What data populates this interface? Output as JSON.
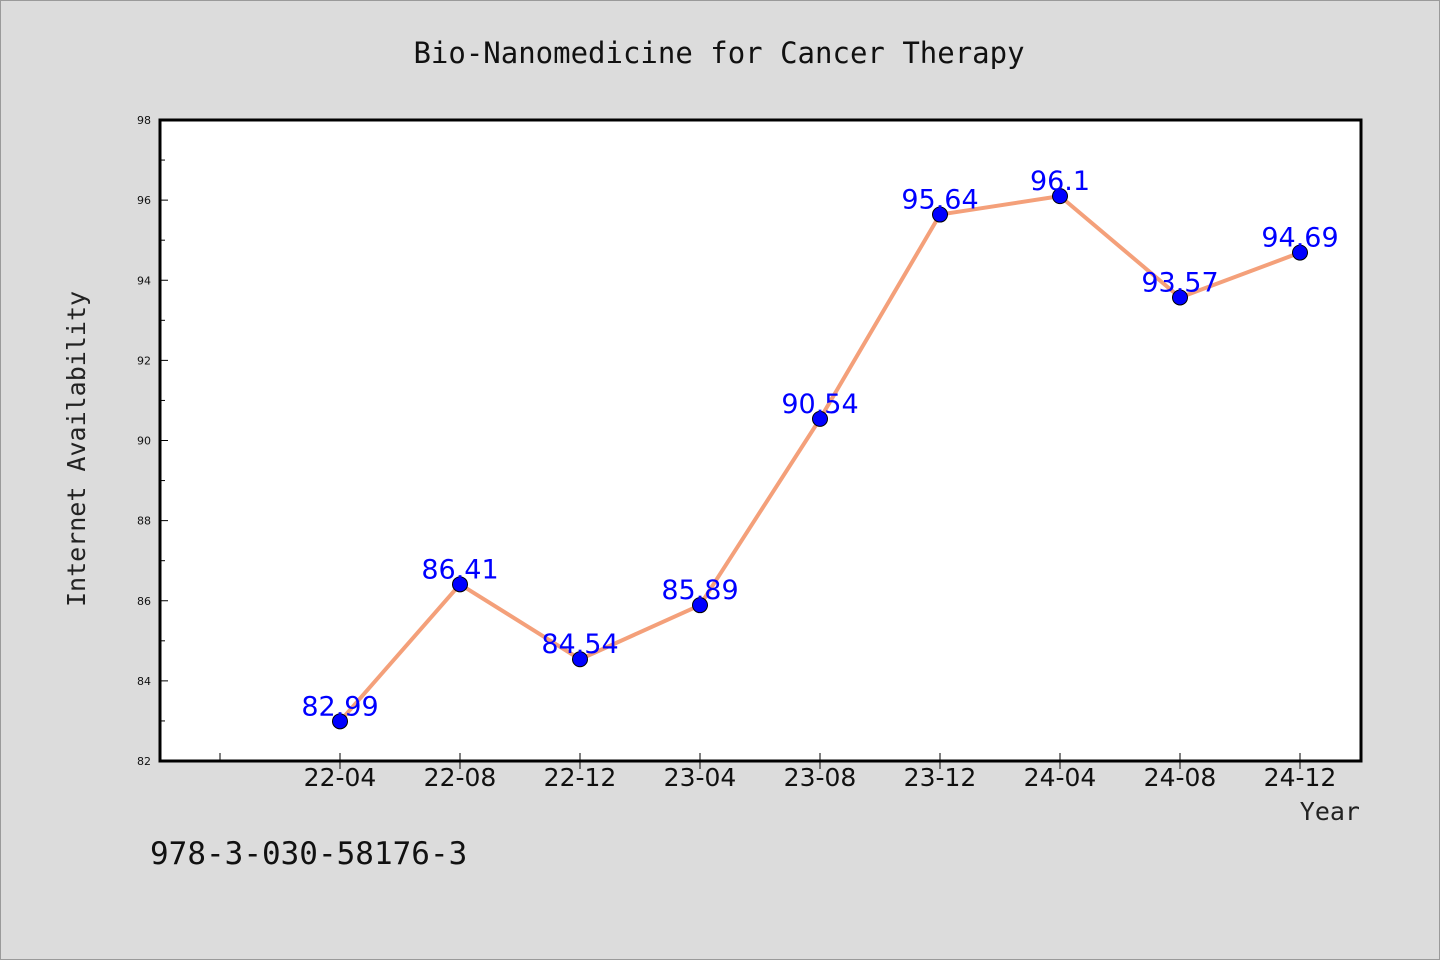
{
  "chart_data": {
    "type": "line",
    "title": "Bio-Nanomedicine for Cancer Therapy",
    "xlabel": "Year",
    "ylabel": "Internet Availability",
    "categories": [
      "22-04",
      "22-08",
      "22-12",
      "23-04",
      "23-08",
      "23-12",
      "24-04",
      "24-08",
      "24-12"
    ],
    "series": [
      {
        "values": [
          82.99,
          86.41,
          84.54,
          85.89,
          90.54,
          95.64,
          96.1,
          93.57,
          94.69
        ],
        "line_color": "#f4a07a",
        "marker_color": "#0000ff",
        "label_color": "#0000ff"
      }
    ],
    "ylim": [
      82,
      98
    ],
    "yticks": [
      82,
      84,
      86,
      88,
      90,
      92,
      94,
      96,
      98
    ],
    "grid": false,
    "legend": "none"
  },
  "footer": {
    "text": "978-3-030-58176-3"
  },
  "colors": {
    "background": "#dcdcdc",
    "plot_background": "#ffffff",
    "axes": "#000000"
  }
}
